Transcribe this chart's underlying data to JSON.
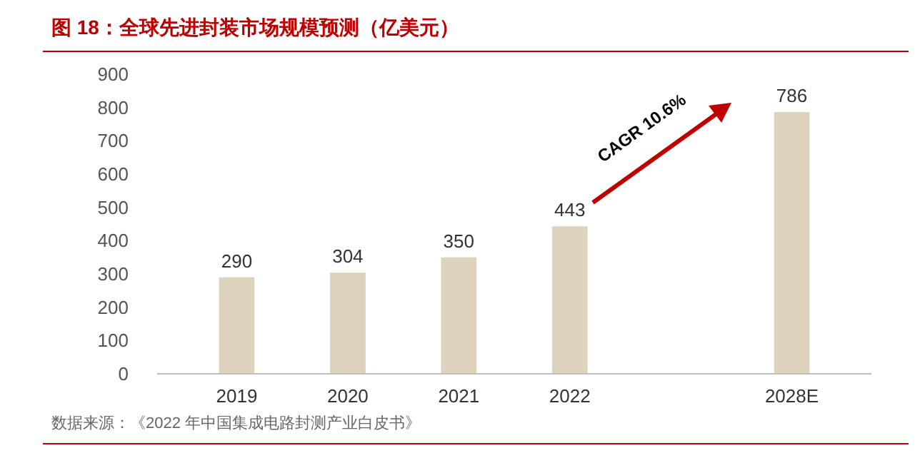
{
  "chart_data": {
    "type": "bar",
    "title": "图 18：全球先进封装市场规模预测（亿美元）",
    "categories": [
      "2019",
      "2020",
      "2021",
      "2022",
      null,
      "2028E"
    ],
    "values": [
      290,
      304,
      350,
      443,
      null,
      786
    ],
    "color": "#ddd3bd",
    "ylim": [
      0,
      900
    ],
    "yticks": [
      0,
      100,
      200,
      300,
      400,
      500,
      600,
      700,
      800,
      900
    ],
    "grid": false,
    "data_labels": true,
    "annotations": [
      "CAGR 10.6%",
      "数据来源：《2022 年中国集成电路封测产业白皮书》"
    ]
  }
}
